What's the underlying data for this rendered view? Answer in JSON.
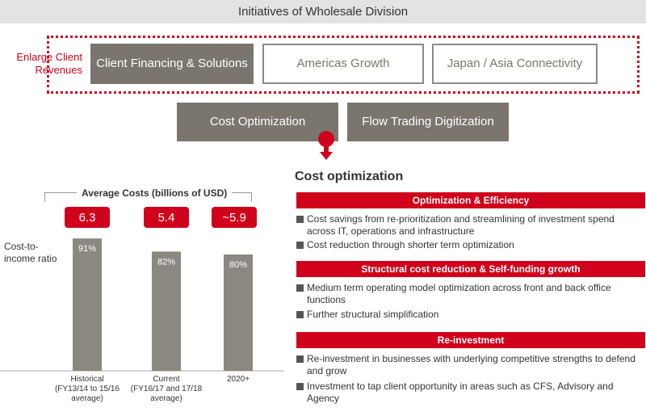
{
  "header": {
    "title": "Initiatives of Wholesale Division"
  },
  "initiatives": {
    "group_label": "Enlarge Client Revenues",
    "row1": [
      "Client Financing & Solutions",
      "Americas Growth",
      "Japan / Asia Connectivity"
    ],
    "row2": [
      "Cost Optimization",
      "Flow Trading Digitization"
    ]
  },
  "cost_optimization": {
    "title": "Cost optimization",
    "sections": [
      {
        "header": "Optimization & Efficiency",
        "bullets": [
          "Cost savings from re-prioritization and streamlining of investment spend across IT, operations and infrastructure",
          "Cost reduction through shorter term optimization"
        ]
      },
      {
        "header": "Structural cost reduction & Self-funding growth",
        "bullets": [
          "Medium term operating model optimization across front and back office functions",
          "Further structural simplification"
        ]
      },
      {
        "header": "Re-investment",
        "bullets": [
          "Re-investment in businesses with underlying competitive strengths to defend and grow",
          "Investment to tap client opportunity in areas such as CFS, Advisory and Agency"
        ]
      }
    ]
  },
  "chart_data": {
    "type": "bar",
    "title": "Average Costs (billions of USD)",
    "ylabel": "Cost-to-income ratio",
    "categories": [
      "Historical\n(FY13/14 to 15/16\naverage)",
      "Current\n(FY16/17 and 17/18\naverage)",
      "2020+"
    ],
    "average_costs": [
      "6.3",
      "5.4",
      "~5.9"
    ],
    "series": [
      {
        "values": [
          91,
          82,
          80
        ]
      }
    ],
    "value_labels": [
      "91%",
      "82%",
      "80%"
    ],
    "ylim": [
      0,
      100
    ],
    "bar_color": "#8a8880"
  }
}
